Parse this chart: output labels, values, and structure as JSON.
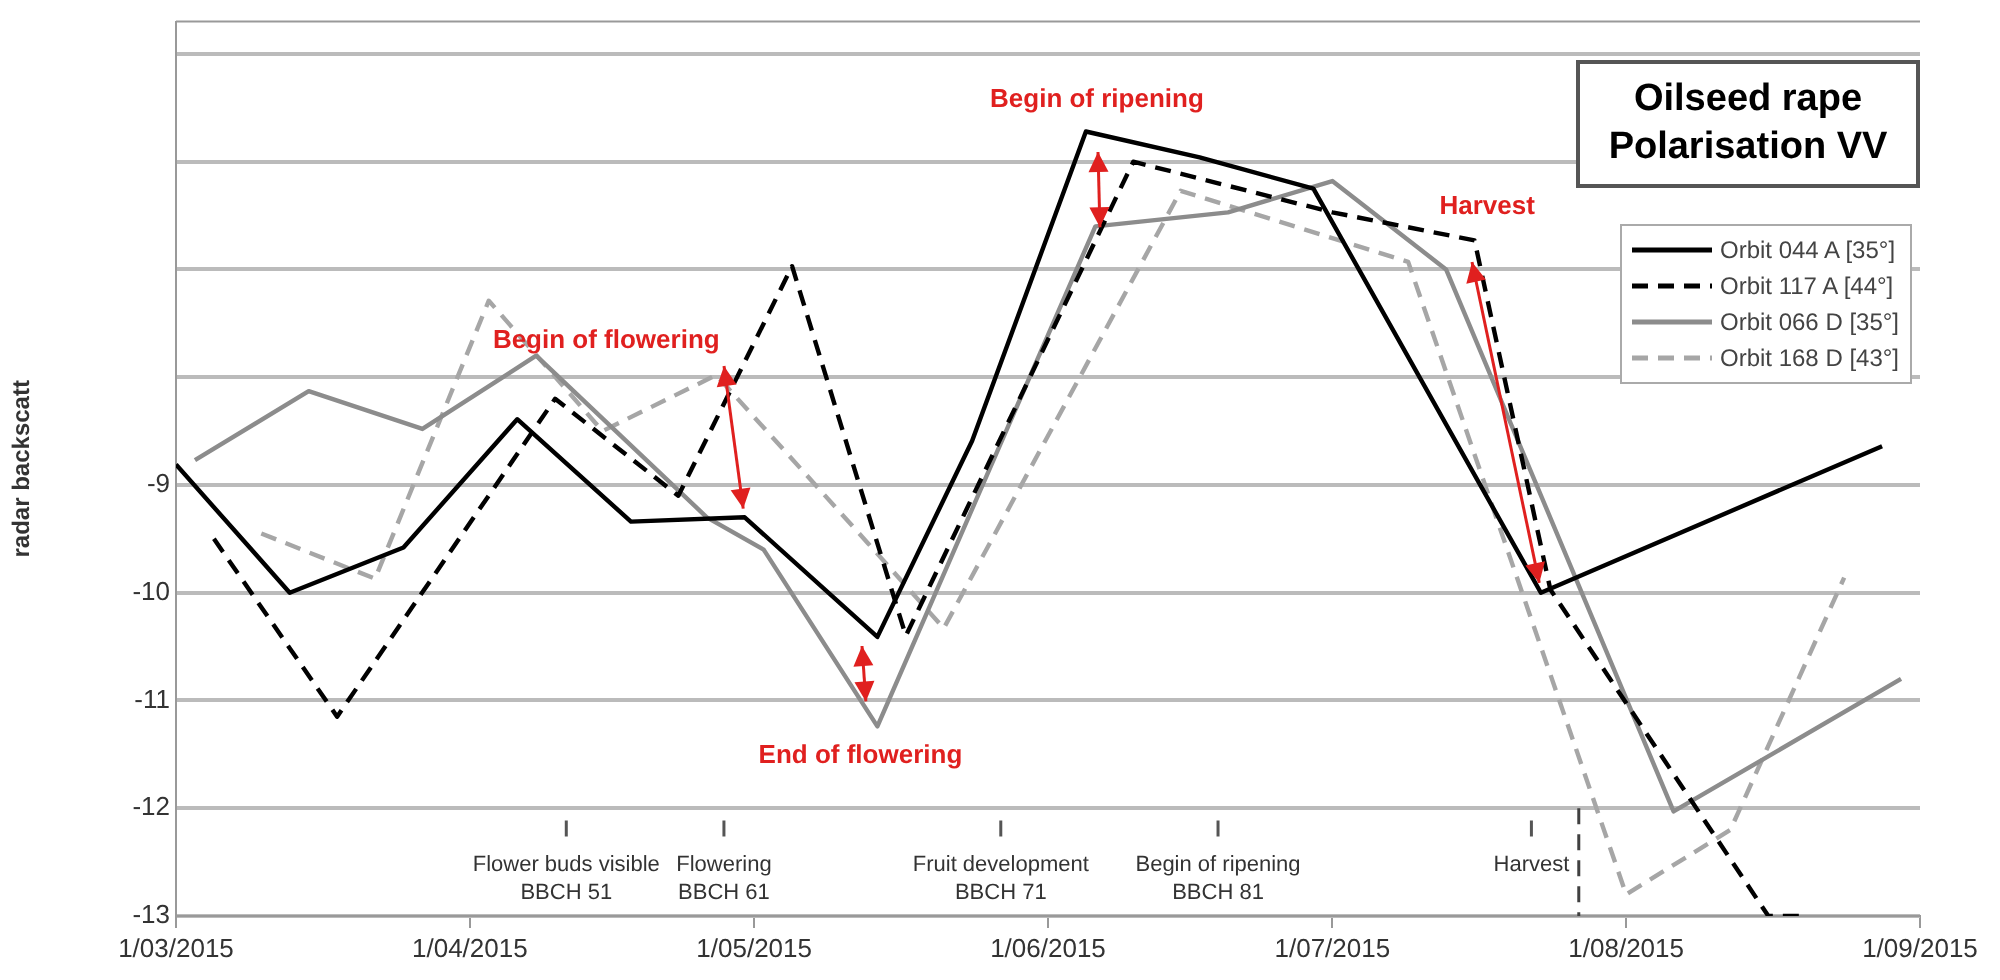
{
  "chart_data": {
    "type": "line",
    "title": "Oilseed rape\nPolarisation VV",
    "ylabel": "radar backscatt",
    "xlim": [
      "2015-03-01",
      "2015-09-01"
    ],
    "xticks": [
      {
        "value": "2015-03-01",
        "label": "1/03/2015"
      },
      {
        "value": "2015-04-01",
        "label": "1/04/2015"
      },
      {
        "value": "2015-05-01",
        "label": "1/05/2015"
      },
      {
        "value": "2015-06-01",
        "label": "1/06/2015"
      },
      {
        "value": "2015-07-01",
        "label": "1/07/2015"
      },
      {
        "value": "2015-08-01",
        "label": "1/08/2015"
      },
      {
        "value": "2015-09-01",
        "label": "1/09/2015"
      }
    ],
    "ylim": [
      -13,
      -4.7
    ],
    "yticks": [
      -13,
      -12,
      -11,
      -10,
      -9,
      {
        "value": -8,
        "label": null
      },
      {
        "value": -7,
        "label": null
      },
      {
        "value": -6,
        "label": null
      },
      {
        "value": -5,
        "label": null
      }
    ],
    "grid": "y",
    "legend": "top right",
    "marker": "none",
    "series": [
      {
        "name": "Orbit 044 A [35°]",
        "color": "#000000",
        "line_style": "solid",
        "x": [
          "2015-03-01",
          "2015-03-13",
          "2015-03-25",
          "2015-04-06",
          "2015-04-18",
          "2015-04-30",
          "2015-05-14",
          "2015-05-24",
          "2015-06-05",
          "2015-06-17",
          "2015-06-29",
          "2015-07-23",
          "2015-08-28"
        ],
        "values": [
          -8.81,
          -10.0,
          -9.58,
          -8.39,
          -9.34,
          -9.3,
          -10.41,
          -8.59,
          -5.72,
          -5.96,
          -6.25,
          -10.0,
          -8.64
        ]
      },
      {
        "name": "Orbit 117 A [44°]",
        "color": "#000000",
        "line_style": "dashed",
        "x": [
          "2015-03-05",
          "2015-03-18",
          "2015-04-10",
          "2015-04-23",
          "2015-05-05",
          "2015-05-17",
          "2015-06-10",
          "2015-07-01",
          "2015-07-16",
          "2015-07-24",
          "2015-08-16",
          "2015-08-20"
        ],
        "values": [
          -9.5,
          -11.15,
          -8.2,
          -9.1,
          -6.97,
          -10.4,
          -6.0,
          -6.47,
          -6.73,
          -9.97,
          -13.0,
          -13.0
        ]
      },
      {
        "name": "Orbit 066 D [35°]",
        "color": "#8c8c8c",
        "line_style": "solid",
        "x": [
          "2015-03-03",
          "2015-03-15",
          "2015-03-27",
          "2015-04-08",
          "2015-04-26",
          "2015-05-02",
          "2015-05-14",
          "2015-06-06",
          "2015-06-20",
          "2015-07-01",
          "2015-07-13",
          "2015-08-06",
          "2015-08-30"
        ],
        "values": [
          -8.77,
          -8.13,
          -8.48,
          -7.8,
          -9.3,
          -9.6,
          -11.24,
          -6.6,
          -6.47,
          -6.18,
          -7.0,
          -12.03,
          -10.8
        ]
      },
      {
        "name": "Orbit 168 D [43°]",
        "color": "#a6a6a6",
        "line_style": "dashed",
        "x": [
          "2015-03-10",
          "2015-03-22",
          "2015-04-03",
          "2015-04-15",
          "2015-04-27",
          "2015-05-13",
          "2015-05-21",
          "2015-06-15",
          "2015-07-09",
          "2015-08-01",
          "2015-08-12",
          "2015-08-24"
        ],
        "values": [
          -9.45,
          -9.87,
          -7.29,
          -8.5,
          -7.98,
          -9.54,
          -10.33,
          -6.27,
          -6.93,
          -12.8,
          -12.2,
          -9.86
        ]
      }
    ],
    "ref_lines": [
      {
        "axis": "x",
        "value": "2015-07-27",
        "line_style": "dashed",
        "color": "#404040"
      }
    ],
    "annotations": [
      {
        "text": "Begin of flowering",
        "x": "2015-04-27",
        "y": -7.98
      },
      "End of flowering",
      "Begin of ripening",
      "Harvest",
      "Flower buds visible\nBBCH 51",
      "Flowering\nBBCH 61",
      "Fruit development\nBBCH 71",
      "Begin of ripening\nBBCH 81",
      "Harvest"
    ]
  }
}
